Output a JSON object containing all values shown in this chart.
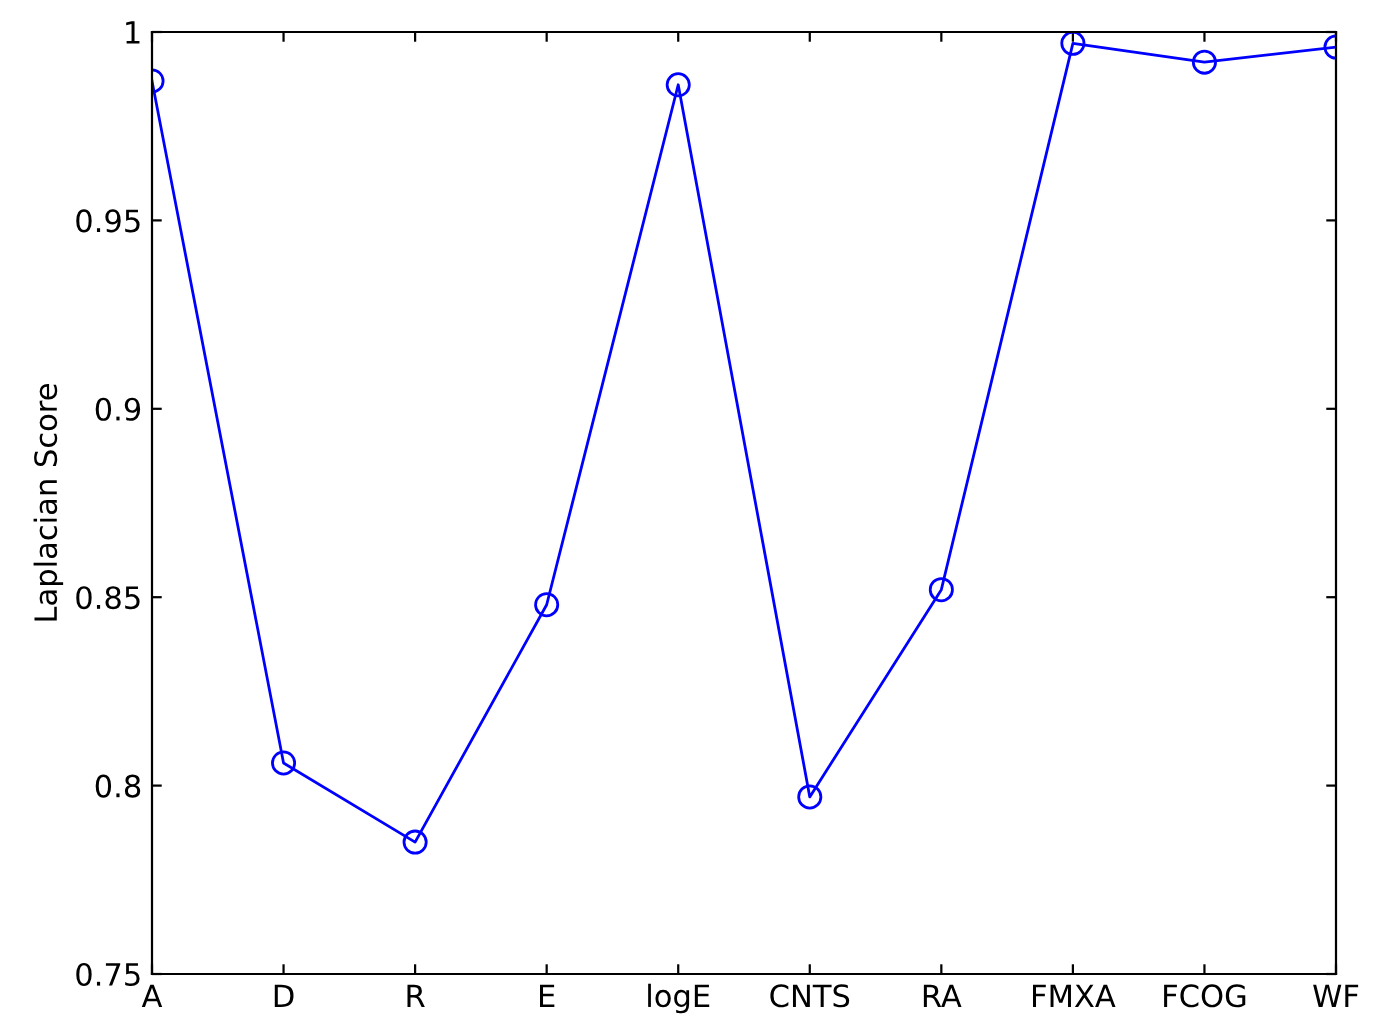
{
  "chart_data": {
    "type": "line",
    "ylabel": "Laplacian Score",
    "categories": [
      "A",
      "D",
      "R",
      "E",
      "logE",
      "CNTS",
      "RA",
      "FMXA",
      "FCOG",
      "WF"
    ],
    "series": [
      {
        "color": "#0000ff",
        "values": [
          0.987,
          0.806,
          0.785,
          0.848,
          0.986,
          0.797,
          0.852,
          0.997,
          0.992,
          0.996
        ]
      }
    ],
    "ylim": [
      0.75,
      1
    ],
    "yticks": [
      0.75,
      0.8,
      0.85,
      0.9,
      0.95,
      1
    ],
    "marker": "circle",
    "line_style": "solid",
    "grid": false,
    "legend": false
  }
}
